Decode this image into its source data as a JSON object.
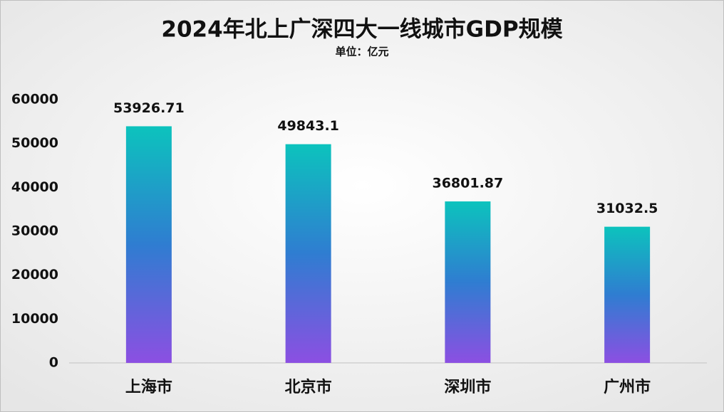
{
  "chart_data": {
    "type": "bar",
    "title": "2024年北上广深四大一线城市GDP规模",
    "subtitle": "单位：亿元",
    "categories": [
      "上海市",
      "北京市",
      "深圳市",
      "广州市"
    ],
    "values": [
      53926.71,
      49843.1,
      36801.87,
      31032.5
    ],
    "gradient_colors": [
      "#0cc3bd",
      "#2f7dd1",
      "#8c4fe2"
    ],
    "ylim": [
      0,
      60000
    ],
    "yticks": [
      0,
      10000,
      20000,
      30000,
      40000,
      50000,
      60000
    ],
    "grid": false
  }
}
